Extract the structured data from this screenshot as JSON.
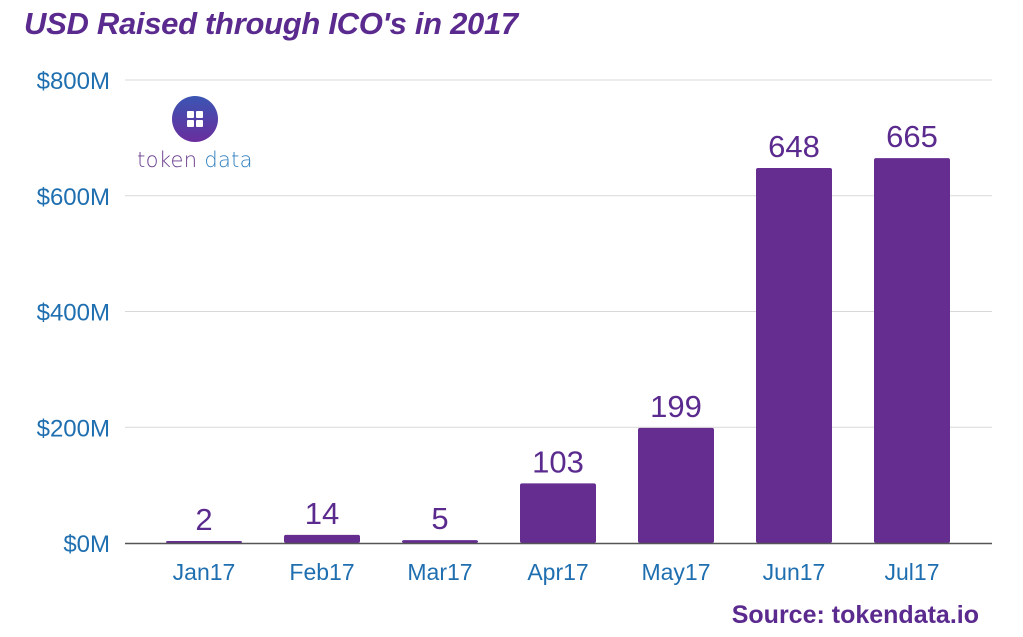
{
  "chart_data": {
    "type": "bar",
    "title": "USD Raised through ICO's in 2017",
    "xlabel": "",
    "ylabel": "",
    "categories": [
      "Jan17",
      "Feb17",
      "Mar17",
      "Apr17",
      "May17",
      "Jun17",
      "Jul17"
    ],
    "values": [
      2,
      14,
      5,
      103,
      199,
      648,
      665
    ],
    "data_labels": [
      "2",
      "14",
      "5",
      "103",
      "199",
      "648",
      "665"
    ],
    "unit": "USD millions",
    "ylim": [
      0,
      800
    ],
    "yticks": [
      0,
      200,
      400,
      600,
      800
    ],
    "ytick_labels": [
      "$0M",
      "$200M",
      "$400M",
      "$600M",
      "$800M"
    ],
    "grid": true,
    "legend": "none",
    "colors": {
      "bar": "#652d90",
      "tick_text": "#1f6fb0",
      "title": "#5b2a8e",
      "grid": "#d9d9d9",
      "baseline": "#555555"
    }
  },
  "logo": {
    "word1": "token",
    "word2": " data",
    "icon": "grid-squares-icon"
  },
  "source": "Source: tokendata.io"
}
